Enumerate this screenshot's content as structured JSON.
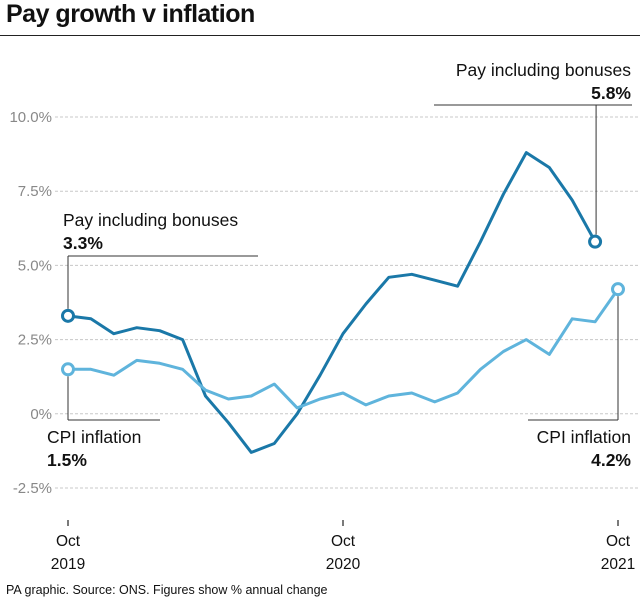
{
  "title": "Pay growth v inflation",
  "footer": "PA graphic. Source: ONS. Figures show % annual change",
  "colors": {
    "pay": "#1a78a8",
    "cpi": "#5fb4dc",
    "grid": "#c8c8c8",
    "axis_text": "#888888"
  },
  "chart_data": {
    "type": "line",
    "title": "Pay growth v inflation",
    "ylim": [
      -2.5,
      10
    ],
    "grid": true,
    "ytick_labels": [
      "10.0%",
      "7.5%",
      "5.0%",
      "2.5%",
      "0%",
      "-2.5%"
    ],
    "yticks": [
      10,
      7.5,
      5,
      2.5,
      0,
      -2.5
    ],
    "x_start": "Oct 2019",
    "x_end": "Oct 2021",
    "xticks": [
      {
        "month": 0,
        "line1": "Oct",
        "line2": "2019"
      },
      {
        "month": 12,
        "line1": "Oct",
        "line2": "2020"
      },
      {
        "month": 24,
        "line1": "Oct",
        "line2": "2021"
      }
    ],
    "series": [
      {
        "key": "pay",
        "name": "Pay including bonuses",
        "months": [
          0,
          1,
          2,
          3,
          4,
          5,
          6,
          7,
          8,
          9,
          10,
          11,
          12,
          13,
          14,
          15,
          16,
          17,
          18,
          19,
          20,
          21,
          22,
          23
        ],
        "values": [
          3.3,
          3.2,
          2.7,
          2.9,
          2.8,
          2.5,
          0.6,
          -0.3,
          -1.3,
          -1.0,
          0.0,
          1.3,
          2.7,
          3.7,
          4.6,
          4.7,
          4.5,
          4.3,
          5.8,
          7.4,
          8.8,
          8.3,
          7.2,
          5.8
        ]
      },
      {
        "key": "cpi",
        "name": "CPI inflation",
        "months": [
          0,
          1,
          2,
          3,
          4,
          5,
          6,
          7,
          8,
          9,
          10,
          11,
          12,
          13,
          14,
          15,
          16,
          17,
          18,
          19,
          20,
          21,
          22,
          23,
          24
        ],
        "values": [
          1.5,
          1.5,
          1.3,
          1.8,
          1.7,
          1.5,
          0.8,
          0.5,
          0.6,
          1.0,
          0.2,
          0.5,
          0.7,
          0.3,
          0.6,
          0.7,
          0.4,
          0.7,
          1.5,
          2.1,
          2.5,
          2.0,
          3.2,
          3.1,
          4.2
        ]
      }
    ],
    "annotations": [
      {
        "key": "pay_start",
        "label": "Pay including bonuses",
        "value": "3.3%"
      },
      {
        "key": "pay_end",
        "label": "Pay including bonuses",
        "value": "5.8%"
      },
      {
        "key": "cpi_start",
        "label": "CPI inflation",
        "value": "1.5%"
      },
      {
        "key": "cpi_end",
        "label": "CPI inflation",
        "value": "4.2%"
      }
    ]
  }
}
